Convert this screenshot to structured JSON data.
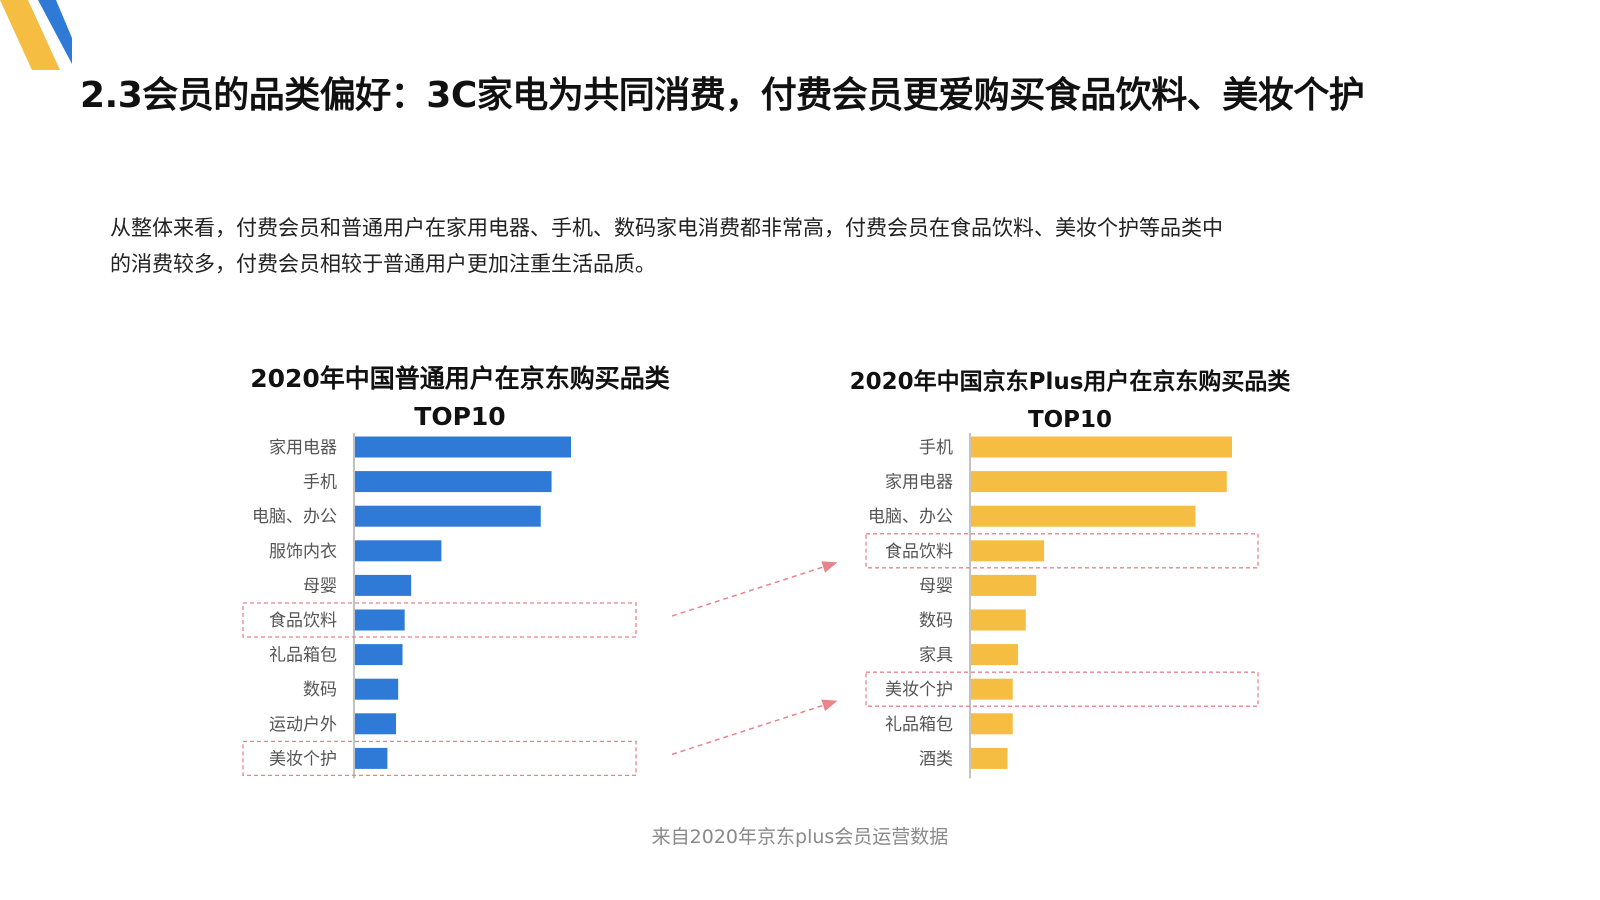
{
  "slide": {
    "title": "2.3会员的品类偏好：3C家电为共同消费，付费会员更爱购买食品饮料、美妆个护",
    "description_line1": "从整体来看，付费会员和普通用户在家用电器、手机、数码家电消费都非常高，付费会员在食品饮料、美妆个护等品类中",
    "description_line2": "的消费较多，付费会员相较于普通用户更加注重生活品质。",
    "source": "来自2020年京东plus会员运营数据"
  },
  "colors": {
    "left_bar": "#2e7ad6",
    "right_bar": "#f5bd42",
    "highlight_box": "#e8848a",
    "arrow": "#e8848a"
  },
  "chart_data": [
    {
      "type": "bar",
      "orientation": "horizontal",
      "title_line1": "2020年中国普通用户在京东购买品类",
      "title_line2": "TOP10",
      "categories": [
        "家用电器",
        "手机",
        "电脑、办公",
        "服饰内衣",
        "母婴",
        "食品饮料",
        "礼品箱包",
        "数码",
        "运动户外",
        "美妆个护"
      ],
      "values": [
        100,
        91,
        86,
        40,
        26,
        23,
        22,
        20,
        19,
        15
      ],
      "value_unit": "relative (no axis printed)",
      "highlighted": [
        "食品饮料",
        "美妆个护"
      ],
      "color": "#2e7ad6"
    },
    {
      "type": "bar",
      "orientation": "horizontal",
      "title_line1": "2020年中国京东Plus用户在京东购买品类",
      "title_line2": "TOP10",
      "categories": [
        "手机",
        "家用电器",
        "电脑、办公",
        "食品饮料",
        "母婴",
        "数码",
        "家具",
        "美妆个护",
        "礼品箱包",
        "酒类"
      ],
      "values": [
        100,
        98,
        86,
        28,
        25,
        21,
        18,
        16,
        16,
        14
      ],
      "value_unit": "relative (no axis printed)",
      "highlighted": [
        "食品饮料",
        "美妆个护"
      ],
      "color": "#f5bd42"
    }
  ]
}
